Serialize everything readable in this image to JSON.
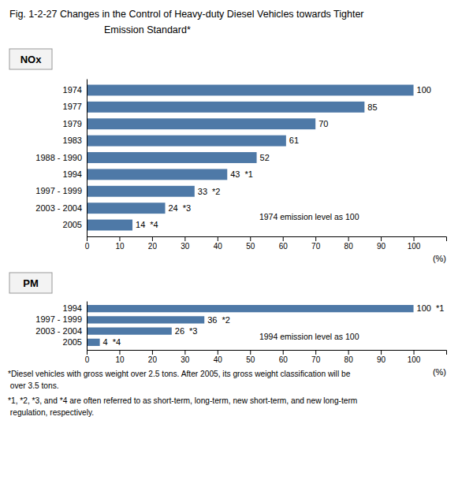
{
  "title": "Fig. 1-2-27  Changes in the Control of Heavy-duty Diesel Vehicles towards Tighter",
  "subtitle": "Emission Standard*",
  "annotations": [
    "*Diesel vehicles with gross weight over 2.5 tons. After 2005, its gross weight classification will be",
    " over 3.5 tons.",
    "*1, *2, *3, and *4 are often referred to as short-term, long-term, new short-term, and new long-term",
    " regulation, respectively."
  ],
  "chart_data": [
    {
      "type": "bar",
      "orientation": "horizontal",
      "title": "NOx",
      "categories": [
        "1974",
        "1977",
        "1979",
        "1983",
        "1988 - 1990",
        "1994",
        "1997 - 1999",
        "2003 - 2004",
        "2005"
      ],
      "values": [
        100,
        85,
        70,
        61,
        52,
        43,
        33,
        24,
        14
      ],
      "xlim": [
        0,
        110
      ],
      "xticks": [
        0,
        10,
        20,
        30,
        40,
        50,
        60,
        70,
        80,
        90,
        100
      ],
      "xlabel": "(%)",
      "data_labels": true,
      "grid": false,
      "annotations": [
        {
          "text": "*1",
          "category": "1994"
        },
        {
          "text": "*2",
          "category": "1997 - 1999"
        },
        {
          "text": "*3",
          "category": "2003 - 2004"
        },
        {
          "text": "*4",
          "category": "2005"
        },
        {
          "text": "1974 emission level as 100"
        }
      ]
    },
    {
      "type": "bar",
      "orientation": "horizontal",
      "title": "PM",
      "categories": [
        "1994",
        "1997 - 1999",
        "2003 - 2004",
        "2005"
      ],
      "values": [
        100,
        36,
        26,
        4
      ],
      "xlim": [
        0,
        110
      ],
      "xticks": [
        0,
        10,
        20,
        30,
        40,
        50,
        60,
        70,
        80,
        90,
        100
      ],
      "xlabel": "(%)",
      "data_labels": true,
      "grid": false,
      "annotations": [
        {
          "text": "*1",
          "category": "1994"
        },
        {
          "text": "*2",
          "category": "1997 - 1999"
        },
        {
          "text": "*3",
          "category": "2003 - 2004"
        },
        {
          "text": "*4",
          "category": "2005"
        },
        {
          "text": "1994 emission level as 100"
        }
      ]
    }
  ]
}
